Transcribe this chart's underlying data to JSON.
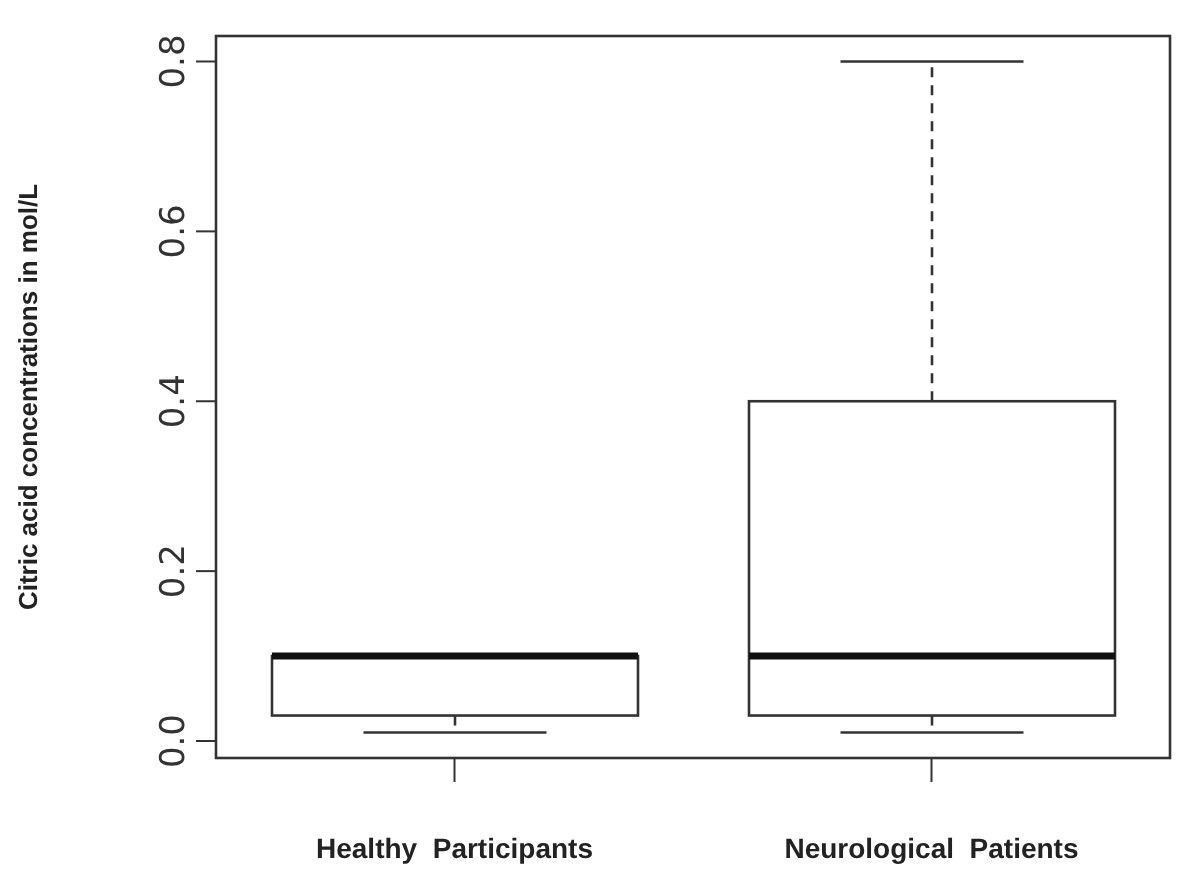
{
  "chart_data": {
    "type": "box",
    "ylabel": "Citric acid concentrations in mol/L",
    "categories": [
      "Healthy  Participants",
      "Neurological  Patients"
    ],
    "color": "#333333",
    "boxes": [
      {
        "low": 0.01,
        "q1": 0.03,
        "median": 0.1,
        "q3": 0.1,
        "high": 0.1
      },
      {
        "low": 0.01,
        "q1": 0.03,
        "median": 0.1,
        "q3": 0.4,
        "high": 0.8
      }
    ],
    "ylim": [
      -0.02,
      0.83
    ],
    "yticks": [
      {
        "value": 0,
        "label": "0.0"
      },
      {
        "value": 0.2,
        "label": "0.2"
      },
      {
        "value": 0.4,
        "label": "0.4"
      },
      {
        "value": 0.6,
        "label": "0.6"
      },
      {
        "value": 0.8,
        "label": "0.8"
      }
    ]
  }
}
